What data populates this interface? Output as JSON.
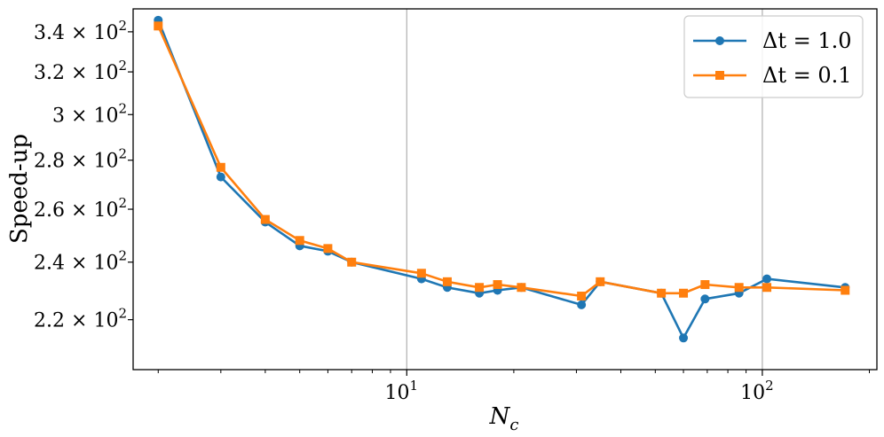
{
  "chart_data": {
    "type": "line",
    "xscale": "log",
    "yscale": "log",
    "xlabel": "N_c",
    "ylabel": "Speed-up",
    "xlim": [
      1.7,
      210
    ],
    "ylim": [
      204,
      352
    ],
    "x_major_ticks": [
      {
        "value": 10,
        "base": "10",
        "exp": "1"
      },
      {
        "value": 100,
        "base": "10",
        "exp": "2"
      }
    ],
    "y_ticks": [
      {
        "value": 220,
        "mant": "2.2",
        "base": "10",
        "exp": "2"
      },
      {
        "value": 240,
        "mant": "2.4",
        "base": "10",
        "exp": "2"
      },
      {
        "value": 260,
        "mant": "2.6",
        "base": "10",
        "exp": "2"
      },
      {
        "value": 280,
        "mant": "2.8",
        "base": "10",
        "exp": "2"
      },
      {
        "value": 300,
        "mant": "3",
        "base": "10",
        "exp": "2"
      },
      {
        "value": 320,
        "mant": "3.2",
        "base": "10",
        "exp": "2"
      },
      {
        "value": 340,
        "mant": "3.4",
        "base": "10",
        "exp": "2"
      }
    ],
    "grid": "x-major",
    "legend_position": "top-right",
    "series": [
      {
        "name_prefix": "Δt = ",
        "name_value": "1.0",
        "color": "#1f77b4",
        "marker": "circle",
        "x": [
          2,
          3,
          4,
          5,
          6,
          7,
          11,
          13,
          16,
          18,
          21,
          31,
          35,
          52,
          60,
          69,
          86,
          103,
          171
        ],
        "y": [
          346,
          273,
          255,
          246,
          244,
          240,
          234,
          231,
          229,
          230,
          231,
          225,
          233,
          229,
          214,
          227,
          229,
          234,
          231
        ]
      },
      {
        "name_prefix": "Δt = ",
        "name_value": "0.1",
        "color": "#ff7f0e",
        "marker": "square",
        "x": [
          2,
          3,
          4,
          5,
          6,
          7,
          11,
          13,
          16,
          18,
          21,
          31,
          35,
          52,
          60,
          69,
          86,
          103,
          171
        ],
        "y": [
          343,
          277,
          256,
          248,
          245,
          240,
          236,
          233,
          231,
          232,
          231,
          228,
          233,
          229,
          229,
          232,
          231,
          231,
          230
        ]
      }
    ]
  }
}
